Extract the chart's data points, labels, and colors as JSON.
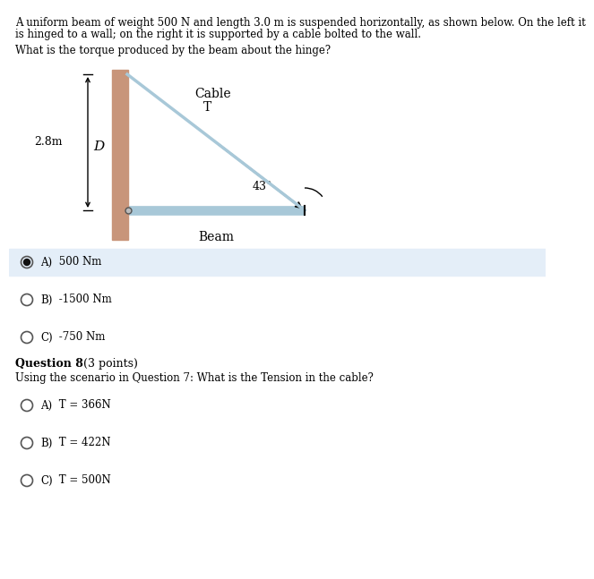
{
  "title_line1": "A uniform beam of weight 500 N and length 3.0 m is suspended horizontally, as shown below. On the left it",
  "title_line2": "is hinged to a wall; on the right it is supported by a cable bolted to the wall.",
  "question_text": "What is the torque produced by the beam about the hinge?",
  "dim_label": "2.8m",
  "dim_letter": "D",
  "cable_label_line1": "Cable",
  "cable_label_line2": "T",
  "angle_label": "43°",
  "beam_label": "Beam",
  "options_q7": [
    {
      "letter": "A)",
      "text": " 500 Nm",
      "selected": true
    },
    {
      "letter": "B)",
      "text": " -1500 Nm",
      "selected": false
    },
    {
      "letter": "C)",
      "text": " -750 Nm",
      "selected": false
    }
  ],
  "question8_bold": "Question 8",
  "question8_normal": " (3 points)",
  "question8_text": "Using the scenario in Question 7: What is the Tension in the cable?",
  "options_q8": [
    {
      "letter": "A)",
      "text": " T = 366N",
      "selected": false
    },
    {
      "letter": "B)",
      "text": " T = 422N",
      "selected": false
    },
    {
      "letter": "C)",
      "text": " T = 500N",
      "selected": false
    }
  ],
  "wall_color": "#c8957a",
  "beam_color": "#a8c8d8",
  "cable_color": "#a8c8d8",
  "bg_color": "#ffffff",
  "selected_bg": "#e4eef8",
  "text_color": "#000000",
  "body_fontsize": 8.5,
  "opt_fontsize": 8.5
}
